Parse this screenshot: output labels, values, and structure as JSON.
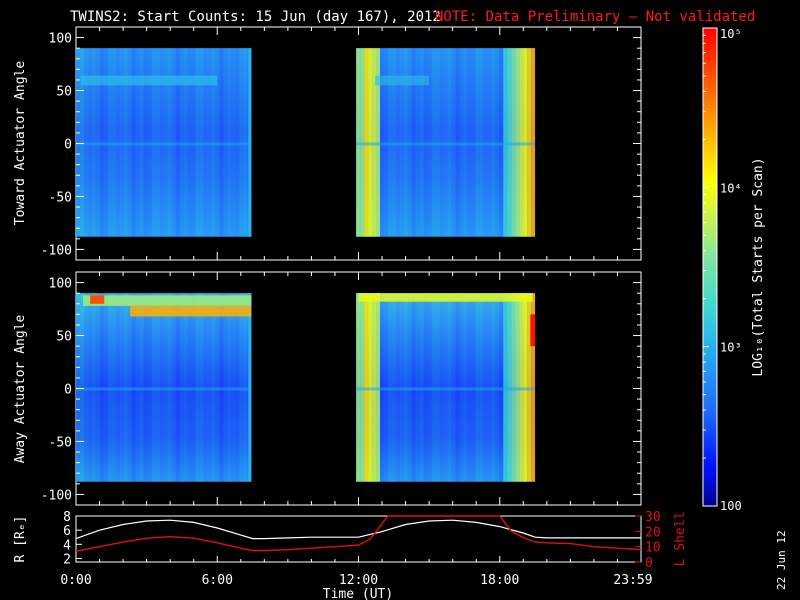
{
  "title": "TWINS2: Start Counts: 15 Jun (day 167), 2012",
  "note": "NOTE: Data Preliminary — Not validated",
  "date_stamp": "22 Jun 12",
  "colors": {
    "note": "#ff1a1a",
    "orbit_r": "#ffffff",
    "orbit_lshell": "#e01010"
  },
  "chart_data": [
    {
      "type": "heatmap",
      "panel": "top",
      "ylabel": "Toward Actuator Angle",
      "ylim": [
        -110,
        110
      ],
      "yticks": [
        "100",
        "50",
        "0",
        "-50",
        "-100"
      ],
      "xlim": [
        0,
        24
      ],
      "xticks": [
        "0:00",
        "6:00",
        "12:00",
        "18:00",
        "23:59"
      ],
      "data_extent_y": [
        -88,
        90
      ],
      "segments": [
        [
          0,
          7.45
        ],
        [
          11.9,
          19.5
        ]
      ]
    },
    {
      "type": "heatmap",
      "panel": "bottom",
      "ylabel": "Away Actuator Angle",
      "ylim": [
        -110,
        110
      ],
      "yticks": [
        "100",
        "50",
        "0",
        "-50",
        "-100"
      ],
      "xlim": [
        0,
        24
      ],
      "xticks": [
        "0:00",
        "6:00",
        "12:00",
        "18:00",
        "23:59"
      ],
      "data_extent_y": [
        -88,
        90
      ],
      "segments": [
        [
          0,
          7.45
        ],
        [
          11.9,
          19.5
        ]
      ]
    },
    {
      "type": "line",
      "panel": "orbit",
      "xlabel": "Time (UT)",
      "ylabel": "R [Rₑ]",
      "ylabel_right": "L Shell",
      "ylim": [
        1.5,
        8
      ],
      "yticks": [
        "8",
        "6",
        "4",
        "2"
      ],
      "ylim_right": [
        0,
        30
      ],
      "yticks_right": [
        "30",
        "20",
        "10",
        "0"
      ],
      "xticks": [
        "0:00",
        "6:00",
        "12:00",
        "18:00",
        "23:59"
      ],
      "series": [
        {
          "axis": "left",
          "color": "#ffffff",
          "x": [
            0,
            1,
            2,
            3,
            4,
            5,
            6,
            7,
            7.5,
            8,
            9,
            10,
            11,
            12,
            13,
            14,
            15,
            16,
            17,
            18,
            19,
            19.5,
            20,
            21,
            22,
            23,
            24
          ],
          "y": [
            4.8,
            6.0,
            6.8,
            7.3,
            7.4,
            7.1,
            6.3,
            5.3,
            4.8,
            4.8,
            4.9,
            5.0,
            5.0,
            5.0,
            5.8,
            6.8,
            7.3,
            7.4,
            7.1,
            6.5,
            5.6,
            5.0,
            4.9,
            4.9,
            4.9,
            4.9,
            4.9
          ]
        },
        {
          "axis": "right",
          "color": "#e01010",
          "x": [
            0,
            1,
            2,
            3,
            4,
            5,
            6,
            7,
            7.5,
            8,
            9,
            10,
            11,
            12,
            12.5,
            13,
            13.25,
            18,
            18.25,
            18.5,
            19,
            19.5,
            20,
            21,
            22,
            23,
            24
          ],
          "y": [
            7,
            10,
            13,
            15.5,
            16.5,
            15.5,
            12.5,
            9,
            7.5,
            7.5,
            8,
            9,
            10,
            11,
            15,
            25,
            30,
            30,
            25,
            20,
            16,
            13,
            12.5,
            12,
            10,
            9,
            8
          ]
        }
      ]
    },
    {
      "type": "colorbar",
      "label": "LOG₁₀(Total Starts per Scan)",
      "tick_labels": [
        "10⁵",
        "10⁴",
        "10³",
        "100"
      ],
      "values": [
        100000,
        10000,
        1000,
        100
      ],
      "range": [
        100,
        100000
      ],
      "scale": "log",
      "colormap": [
        "#000090",
        "#0010ff",
        "#1e6cff",
        "#25b0f0",
        "#40d8d0",
        "#80e6a0",
        "#c8f050",
        "#ffff00",
        "#ffa000",
        "#ff4000",
        "#ff0000"
      ]
    }
  ]
}
